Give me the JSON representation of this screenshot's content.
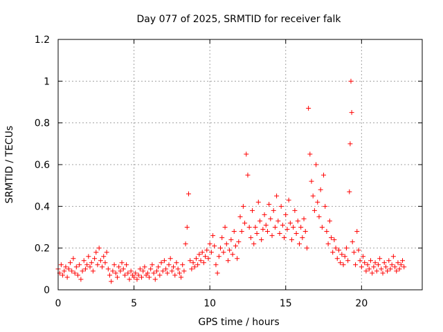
{
  "chart_data": {
    "type": "scatter",
    "title": "Day 077 of 2025, SRMTID for receiver falk",
    "xlabel": "GPS time / hours",
    "ylabel": "SRMTID / TECUs",
    "xlim": [
      0,
      24
    ],
    "ylim": [
      0,
      1.2
    ],
    "x_ticks": [
      0,
      5,
      10,
      15,
      20
    ],
    "x_tick_labels": [
      "0",
      "5",
      "10",
      "15",
      "20"
    ],
    "y_ticks": [
      0,
      0.2,
      0.4,
      0.6,
      0.8,
      1.0,
      1.2
    ],
    "y_tick_labels": [
      "0",
      "0.2",
      "0.4",
      "0.6",
      "0.8",
      "1",
      "1.2"
    ],
    "grid": true,
    "marker": "+",
    "color": "#ff0000",
    "series": [
      {
        "name": "SRMTID",
        "points": [
          [
            0.0,
            0.1
          ],
          [
            0.1,
            0.08
          ],
          [
            0.2,
            0.12
          ],
          [
            0.3,
            0.07
          ],
          [
            0.4,
            0.09
          ],
          [
            0.5,
            0.11
          ],
          [
            0.6,
            0.06
          ],
          [
            0.7,
            0.1
          ],
          [
            0.8,
            0.13
          ],
          [
            0.9,
            0.09
          ],
          [
            1.0,
            0.15
          ],
          [
            1.1,
            0.08
          ],
          [
            1.2,
            0.11
          ],
          [
            1.3,
            0.07
          ],
          [
            1.4,
            0.12
          ],
          [
            1.5,
            0.05
          ],
          [
            1.6,
            0.09
          ],
          [
            1.7,
            0.14
          ],
          [
            1.8,
            0.1
          ],
          [
            1.9,
            0.12
          ],
          [
            2.0,
            0.16
          ],
          [
            2.1,
            0.11
          ],
          [
            2.2,
            0.13
          ],
          [
            2.3,
            0.09
          ],
          [
            2.4,
            0.15
          ],
          [
            2.5,
            0.18
          ],
          [
            2.6,
            0.12
          ],
          [
            2.7,
            0.2
          ],
          [
            2.8,
            0.14
          ],
          [
            2.9,
            0.11
          ],
          [
            3.0,
            0.16
          ],
          [
            3.1,
            0.13
          ],
          [
            3.2,
            0.18
          ],
          [
            3.3,
            0.1
          ],
          [
            3.4,
            0.07
          ],
          [
            3.5,
            0.04
          ],
          [
            3.6,
            0.09
          ],
          [
            3.7,
            0.12
          ],
          [
            3.8,
            0.08
          ],
          [
            3.9,
            0.06
          ],
          [
            4.0,
            0.11
          ],
          [
            4.1,
            0.09
          ],
          [
            4.2,
            0.13
          ],
          [
            4.3,
            0.1
          ],
          [
            4.4,
            0.07
          ],
          [
            4.5,
            0.12
          ],
          [
            4.6,
            0.08
          ],
          [
            4.7,
            0.05
          ],
          [
            4.8,
            0.09
          ],
          [
            4.9,
            0.07
          ],
          [
            5.0,
            0.06
          ],
          [
            5.1,
            0.08
          ],
          [
            5.2,
            0.05
          ],
          [
            5.3,
            0.07
          ],
          [
            5.4,
            0.1
          ],
          [
            5.5,
            0.06
          ],
          [
            5.6,
            0.09
          ],
          [
            5.7,
            0.11
          ],
          [
            5.8,
            0.07
          ],
          [
            5.9,
            0.08
          ],
          [
            6.0,
            0.06
          ],
          [
            6.1,
            0.1
          ],
          [
            6.2,
            0.12
          ],
          [
            6.3,
            0.08
          ],
          [
            6.4,
            0.05
          ],
          [
            6.5,
            0.09
          ],
          [
            6.6,
            0.11
          ],
          [
            6.7,
            0.07
          ],
          [
            6.8,
            0.13
          ],
          [
            6.9,
            0.09
          ],
          [
            7.0,
            0.14
          ],
          [
            7.1,
            0.1
          ],
          [
            7.2,
            0.08
          ],
          [
            7.3,
            0.12
          ],
          [
            7.4,
            0.15
          ],
          [
            7.5,
            0.09
          ],
          [
            7.6,
            0.11
          ],
          [
            7.7,
            0.07
          ],
          [
            7.8,
            0.13
          ],
          [
            7.9,
            0.1
          ],
          [
            8.0,
            0.08
          ],
          [
            8.1,
            0.06
          ],
          [
            8.2,
            0.12
          ],
          [
            8.3,
            0.09
          ],
          [
            8.4,
            0.22
          ],
          [
            8.5,
            0.3
          ],
          [
            8.6,
            0.46
          ],
          [
            8.7,
            0.14
          ],
          [
            8.8,
            0.1
          ],
          [
            8.9,
            0.13
          ],
          [
            9.0,
            0.11
          ],
          [
            9.1,
            0.15
          ],
          [
            9.2,
            0.12
          ],
          [
            9.3,
            0.17
          ],
          [
            9.4,
            0.14
          ],
          [
            9.5,
            0.18
          ],
          [
            9.6,
            0.13
          ],
          [
            9.7,
            0.16
          ],
          [
            9.8,
            0.19
          ],
          [
            9.9,
            0.15
          ],
          [
            10.0,
            0.22
          ],
          [
            10.1,
            0.18
          ],
          [
            10.2,
            0.26
          ],
          [
            10.3,
            0.21
          ],
          [
            10.4,
            0.12
          ],
          [
            10.5,
            0.08
          ],
          [
            10.6,
            0.16
          ],
          [
            10.7,
            0.2
          ],
          [
            10.8,
            0.25
          ],
          [
            10.9,
            0.18
          ],
          [
            11.0,
            0.3
          ],
          [
            11.1,
            0.22
          ],
          [
            11.2,
            0.14
          ],
          [
            11.3,
            0.19
          ],
          [
            11.4,
            0.24
          ],
          [
            11.5,
            0.17
          ],
          [
            11.6,
            0.28
          ],
          [
            11.7,
            0.21
          ],
          [
            11.8,
            0.15
          ],
          [
            11.9,
            0.23
          ],
          [
            12.0,
            0.35
          ],
          [
            12.1,
            0.28
          ],
          [
            12.2,
            0.4
          ],
          [
            12.3,
            0.32
          ],
          [
            12.4,
            0.65
          ],
          [
            12.5,
            0.55
          ],
          [
            12.6,
            0.3
          ],
          [
            12.7,
            0.25
          ],
          [
            12.8,
            0.38
          ],
          [
            12.9,
            0.22
          ],
          [
            13.0,
            0.3
          ],
          [
            13.1,
            0.27
          ],
          [
            13.2,
            0.42
          ],
          [
            13.3,
            0.33
          ],
          [
            13.4,
            0.24
          ],
          [
            13.5,
            0.29
          ],
          [
            13.6,
            0.36
          ],
          [
            13.7,
            0.31
          ],
          [
            13.8,
            0.28
          ],
          [
            13.9,
            0.41
          ],
          [
            14.0,
            0.34
          ],
          [
            14.1,
            0.26
          ],
          [
            14.2,
            0.38
          ],
          [
            14.3,
            0.3
          ],
          [
            14.4,
            0.45
          ],
          [
            14.5,
            0.33
          ],
          [
            14.6,
            0.27
          ],
          [
            14.7,
            0.4
          ],
          [
            14.8,
            0.31
          ],
          [
            14.9,
            0.25
          ],
          [
            15.0,
            0.36
          ],
          [
            15.1,
            0.29
          ],
          [
            15.2,
            0.43
          ],
          [
            15.3,
            0.32
          ],
          [
            15.4,
            0.24
          ],
          [
            15.5,
            0.3
          ],
          [
            15.6,
            0.38
          ],
          [
            15.7,
            0.27
          ],
          [
            15.8,
            0.33
          ],
          [
            15.9,
            0.22
          ],
          [
            16.0,
            0.3
          ],
          [
            16.1,
            0.25
          ],
          [
            16.2,
            0.34
          ],
          [
            16.3,
            0.28
          ],
          [
            16.4,
            0.2
          ],
          [
            16.5,
            0.87
          ],
          [
            16.6,
            0.65
          ],
          [
            16.7,
            0.52
          ],
          [
            16.8,
            0.45
          ],
          [
            16.9,
            0.38
          ],
          [
            17.0,
            0.6
          ],
          [
            17.1,
            0.42
          ],
          [
            17.2,
            0.35
          ],
          [
            17.3,
            0.48
          ],
          [
            17.4,
            0.3
          ],
          [
            17.5,
            0.55
          ],
          [
            17.6,
            0.4
          ],
          [
            17.7,
            0.28
          ],
          [
            17.8,
            0.22
          ],
          [
            17.9,
            0.33
          ],
          [
            18.0,
            0.25
          ],
          [
            18.1,
            0.18
          ],
          [
            18.2,
            0.24
          ],
          [
            18.3,
            0.2
          ],
          [
            18.4,
            0.15
          ],
          [
            18.5,
            0.19
          ],
          [
            18.6,
            0.13
          ],
          [
            18.7,
            0.17
          ],
          [
            18.8,
            0.12
          ],
          [
            18.9,
            0.16
          ],
          [
            19.0,
            0.2
          ],
          [
            19.1,
            0.14
          ],
          [
            19.2,
            0.47
          ],
          [
            19.25,
            0.7
          ],
          [
            19.3,
            1.0
          ],
          [
            19.35,
            0.85
          ],
          [
            19.4,
            0.23
          ],
          [
            19.5,
            0.18
          ],
          [
            19.6,
            0.12
          ],
          [
            19.7,
            0.28
          ],
          [
            19.8,
            0.19
          ],
          [
            19.9,
            0.14
          ],
          [
            20.0,
            0.11
          ],
          [
            20.1,
            0.16
          ],
          [
            20.2,
            0.13
          ],
          [
            20.3,
            0.09
          ],
          [
            20.4,
            0.12
          ],
          [
            20.5,
            0.1
          ],
          [
            20.6,
            0.14
          ],
          [
            20.7,
            0.08
          ],
          [
            20.8,
            0.11
          ],
          [
            20.9,
            0.13
          ],
          [
            21.0,
            0.09
          ],
          [
            21.1,
            0.12
          ],
          [
            21.2,
            0.15
          ],
          [
            21.3,
            0.1
          ],
          [
            21.4,
            0.08
          ],
          [
            21.5,
            0.13
          ],
          [
            21.6,
            0.11
          ],
          [
            21.7,
            0.09
          ],
          [
            21.8,
            0.14
          ],
          [
            21.9,
            0.1
          ],
          [
            22.0,
            0.12
          ],
          [
            22.1,
            0.16
          ],
          [
            22.2,
            0.11
          ],
          [
            22.3,
            0.09
          ],
          [
            22.4,
            0.13
          ],
          [
            22.5,
            0.1
          ],
          [
            22.6,
            0.12
          ],
          [
            22.7,
            0.14
          ],
          [
            22.8,
            0.11
          ]
        ]
      }
    ]
  }
}
